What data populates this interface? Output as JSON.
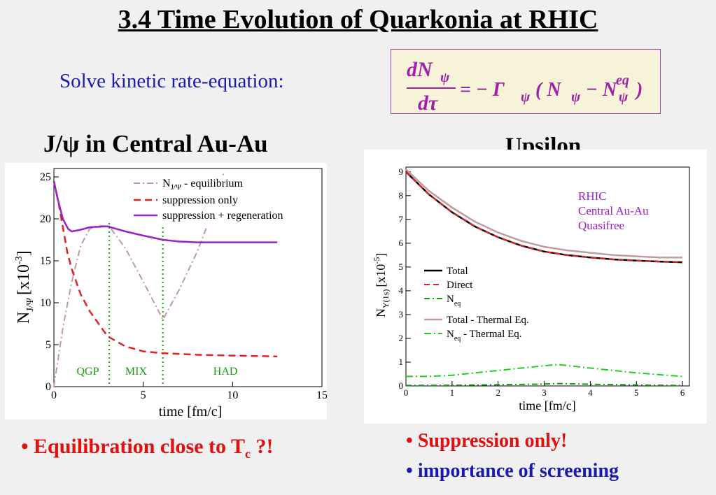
{
  "slide": {
    "title": "3.4 Time Evolution of Quarkonia at RHIC",
    "intro": "Solve kinetic rate-equation:",
    "equation": {
      "lhs_num": "dN",
      "lhs_den": "dτ",
      "sub_psi": "ψ",
      "eq_minus": "= − Γ",
      "paren_open": "( N",
      "minus": "− N",
      "sup_eq": "eq",
      "paren_close": ")"
    },
    "left_title": "J/ψ in Central Au-Au",
    "right_title": "Upsilon",
    "bullets": {
      "b1_text": "Equilibration close to T",
      "b1_sub": "c",
      "b1_tail": " ?!",
      "b2": "Suppression only!",
      "b3": "importance of screening",
      "bullet_char": "•"
    }
  },
  "chart_data": [
    {
      "type": "line",
      "xlabel": "time [fm/c]",
      "ylabel_main": "N",
      "ylabel_sub": "J/Ψ",
      "ylabel_unit": "[x10",
      "ylabel_exp": "-3",
      "ylabel_close": "]",
      "xlim": [
        0,
        15
      ],
      "ylim": [
        0,
        26
      ],
      "xticks": [
        0,
        5,
        10,
        15
      ],
      "yticks": [
        0,
        5,
        10,
        15,
        20,
        25
      ],
      "legend_position": "top-right",
      "phase_labels": [
        "QGP",
        "MIX",
        "HAD"
      ],
      "phase_boundaries": [
        3.1,
        6.1
      ],
      "legend_entries": {
        "eq_main": "N",
        "eq_sub": "J/Ψ",
        "eq_tail": " - equilibrium",
        "supp": "suppression only",
        "regen": "suppression + regeneration"
      },
      "colors": {
        "equilibrium": "#c49a9a",
        "suppression": "#e82020",
        "regeneration": "#9a20c8",
        "phase": "#10a010"
      },
      "series": [
        {
          "key": "equilibrium",
          "x": [
            0,
            0.5,
            1.0,
            1.5,
            2.0,
            2.5,
            3.1,
            4.0,
            5.0,
            6.1,
            7.0,
            8.0,
            9.0,
            9.5
          ],
          "y": [
            0,
            7,
            12.5,
            16.8,
            18.8,
            19.2,
            19.1,
            16.5,
            12.5,
            8.0,
            11.5,
            16.0,
            21.5,
            25.5
          ]
        },
        {
          "key": "suppression",
          "x": [
            0,
            0.25,
            0.5,
            0.75,
            1.0,
            1.5,
            2.0,
            3.0,
            4.0,
            5.0,
            6.0,
            7.0,
            8.0,
            10.0,
            12.5
          ],
          "y": [
            24.5,
            22,
            19,
            16,
            14,
            11,
            9.0,
            6.0,
            4.8,
            4.2,
            4.0,
            3.9,
            3.8,
            3.7,
            3.6
          ]
        },
        {
          "key": "regeneration",
          "x": [
            0,
            0.2,
            0.5,
            0.8,
            1.0,
            1.5,
            2.0,
            3.0,
            4.0,
            5.0,
            6.1,
            7.0,
            8.0,
            10.0,
            12.5
          ],
          "y": [
            24.5,
            22.5,
            20,
            18.8,
            18.5,
            18.7,
            19.0,
            19.1,
            18.5,
            18.0,
            17.5,
            17.3,
            17.2,
            17.2,
            17.2
          ]
        }
      ]
    },
    {
      "type": "line",
      "xlabel": "time [fm/c]",
      "ylabel_main": "N",
      "ylabel_sub": "Υ(1s)",
      "ylabel_unit": "[x10",
      "ylabel_exp": "-5",
      "ylabel_close": "]",
      "xlim": [
        0,
        6.15
      ],
      "ylim": [
        0,
        9.2
      ],
      "xticks": [
        0,
        1,
        2,
        3,
        4,
        5,
        6
      ],
      "yticks": [
        0,
        1,
        2,
        3,
        4,
        5,
        6,
        7,
        8,
        9
      ],
      "legend_position": "center-left",
      "annotation": [
        "RHIC",
        "Central Au-Au",
        "Quasifree"
      ],
      "legend_entries": [
        {
          "key": "total",
          "label": "Total"
        },
        {
          "key": "direct",
          "label": "Direct"
        },
        {
          "key": "neq",
          "label": "N",
          "sub": "eq"
        },
        {
          "key": "total_th",
          "label": "Total - Thermal Eq."
        },
        {
          "key": "neq_th",
          "label": "N",
          "sub": "eq",
          "tail": " - Thermal Eq."
        }
      ],
      "colors": {
        "total": "#000000",
        "direct": "#e82020",
        "neq": "#10a010",
        "total_th": "#c49a9a",
        "neq_th": "#20d020",
        "annotation": "#9a20c8"
      },
      "series": [
        {
          "key": "total_th",
          "x": [
            0,
            0.5,
            1,
            1.5,
            2,
            2.5,
            3,
            3.5,
            4,
            4.5,
            5,
            5.5,
            6
          ],
          "y": [
            9.1,
            8.2,
            7.5,
            6.9,
            6.45,
            6.1,
            5.85,
            5.7,
            5.6,
            5.5,
            5.45,
            5.4,
            5.4
          ]
        },
        {
          "key": "total",
          "x": [
            0,
            0.5,
            1,
            1.5,
            2,
            2.5,
            3,
            3.5,
            4,
            4.5,
            5,
            5.5,
            6
          ],
          "y": [
            9.0,
            8.05,
            7.3,
            6.7,
            6.25,
            5.9,
            5.65,
            5.5,
            5.4,
            5.32,
            5.27,
            5.23,
            5.2
          ]
        },
        {
          "key": "direct",
          "x": [
            0,
            0.5,
            1,
            1.5,
            2,
            2.5,
            3,
            3.5,
            4,
            4.5,
            5,
            5.5,
            6
          ],
          "y": [
            9.0,
            8.05,
            7.3,
            6.7,
            6.25,
            5.9,
            5.65,
            5.5,
            5.4,
            5.32,
            5.27,
            5.23,
            5.2
          ]
        },
        {
          "key": "neq_th",
          "x": [
            0,
            0.5,
            1,
            1.5,
            2,
            2.5,
            3,
            3.3,
            4,
            5,
            6
          ],
          "y": [
            0.4,
            0.4,
            0.45,
            0.55,
            0.65,
            0.75,
            0.85,
            0.9,
            0.75,
            0.55,
            0.4
          ]
        },
        {
          "key": "neq",
          "x": [
            0,
            1,
            2,
            3,
            3.3,
            4,
            5,
            6
          ],
          "y": [
            0.02,
            0.03,
            0.05,
            0.08,
            0.1,
            0.07,
            0.04,
            0.02
          ]
        }
      ]
    }
  ]
}
